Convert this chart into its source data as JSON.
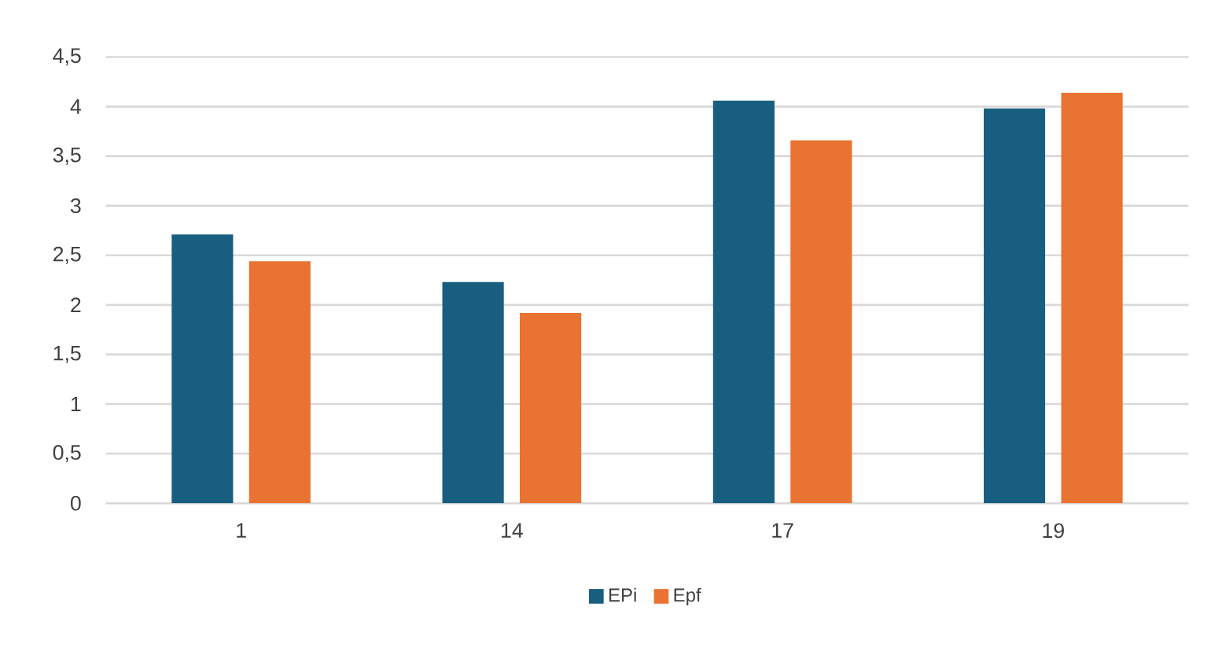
{
  "chart_data": {
    "type": "bar",
    "categories": [
      "1",
      "14",
      "17",
      "19"
    ],
    "series": [
      {
        "name": "EPi",
        "color": "#175e80",
        "values": [
          2.71,
          2.23,
          4.06,
          3.98
        ]
      },
      {
        "name": "Epf",
        "color": "#e97332",
        "values": [
          2.44,
          1.92,
          3.66,
          4.14
        ]
      }
    ],
    "ylim": [
      0,
      4.5
    ],
    "yticks": [
      0,
      {
        "value": 0.5,
        "label": "0,5"
      },
      1,
      {
        "value": 1.5,
        "label": "1,5"
      },
      2,
      {
        "value": 2.5,
        "label": "2,5"
      },
      3,
      {
        "value": 3.5,
        "label": "3,5"
      },
      4,
      {
        "value": 4.5,
        "label": "4,5"
      }
    ],
    "grid": "y",
    "legend": "bottom"
  }
}
